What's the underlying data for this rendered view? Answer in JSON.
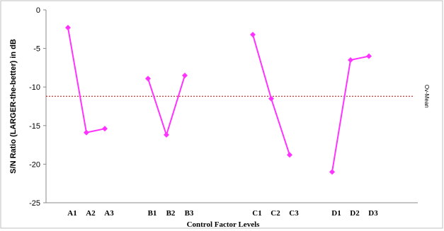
{
  "chart_data": {
    "type": "line",
    "xlabel": "Control Factor Levels",
    "ylabel": "S/N Ratio (LARGER-the-better) in dB",
    "ylim": [
      -25,
      0
    ],
    "yticks": [
      0,
      -5,
      -10,
      -15,
      -20,
      -25
    ],
    "grid": false,
    "series_color": "#ff33ff",
    "reference_color": "#cc0000",
    "groups": [
      {
        "labels": [
          "A1",
          "A2",
          "A3"
        ],
        "values": [
          -2.3,
          -15.9,
          -15.4
        ]
      },
      {
        "labels": [
          "B1",
          "B2",
          "B3"
        ],
        "values": [
          -8.9,
          -16.2,
          -8.5
        ]
      },
      {
        "labels": [
          "C1",
          "C2",
          "C3"
        ],
        "values": [
          -3.2,
          -11.5,
          -18.8
        ]
      },
      {
        "labels": [
          "D1",
          "D2",
          "D3"
        ],
        "values": [
          -21.0,
          -6.5,
          -6.0
        ]
      }
    ],
    "reference_line": {
      "label": "Ov-Mean",
      "value": -11.2
    }
  }
}
